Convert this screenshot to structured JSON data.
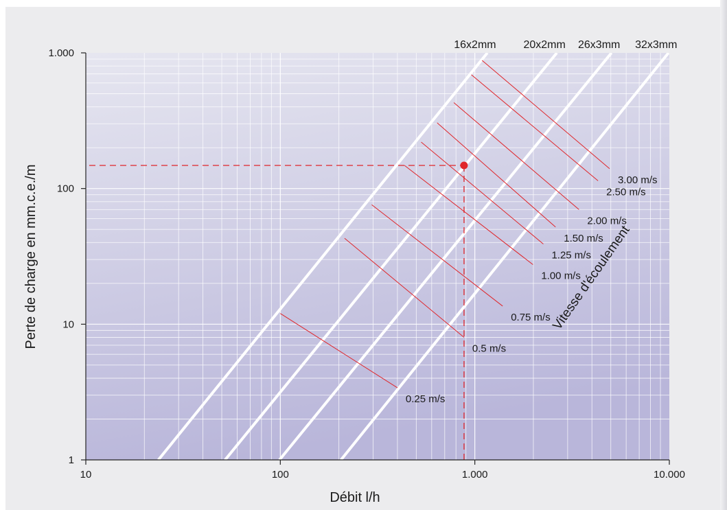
{
  "chart_data": {
    "type": "line",
    "title": "",
    "xlabel": "Débit l/h",
    "ylabel": "Perte de charge en mm.c.e./m",
    "xscale": "log",
    "yscale": "log",
    "xlim": [
      10,
      10000
    ],
    "ylim": [
      1,
      1000
    ],
    "grid": true,
    "x_ticks": [
      {
        "value": 10,
        "label": "10"
      },
      {
        "value": 100,
        "label": "100"
      },
      {
        "value": 1000,
        "label": "1.000"
      },
      {
        "value": 10000,
        "label": "10.000"
      }
    ],
    "y_ticks": [
      {
        "value": 1,
        "label": "1"
      },
      {
        "value": 10,
        "label": "10"
      },
      {
        "value": 100,
        "label": "100"
      },
      {
        "value": 1000,
        "label": "1.000"
      }
    ],
    "series": [
      {
        "name": "16x2mm",
        "points": [
          [
            23.6,
            1
          ],
          [
            1160,
            1000
          ]
        ]
      },
      {
        "name": "20x2mm",
        "points": [
          [
            52,
            1
          ],
          [
            2640,
            1000
          ]
        ]
      },
      {
        "name": "26x3mm",
        "points": [
          [
            99,
            1
          ],
          [
            5040,
            1000
          ]
        ]
      },
      {
        "name": "32x3mm",
        "points": [
          [
            205,
            1
          ],
          [
            9900,
            1000
          ]
        ]
      }
    ],
    "velocity_lines": [
      {
        "label": "3.00 m/s",
        "points": [
          [
            1090,
            880
          ],
          [
            4930,
            140
          ]
        ]
      },
      {
        "label": "2.50 m/s",
        "points": [
          [
            960,
            690
          ],
          [
            4300,
            114
          ]
        ]
      },
      {
        "label": "2.00 m/s",
        "points": [
          [
            780,
            430
          ],
          [
            3430,
            70
          ]
        ]
      },
      {
        "label": "1.50 m/s",
        "points": [
          [
            640,
            305
          ],
          [
            2600,
            52
          ]
        ]
      },
      {
        "label": "1.25 m/s",
        "points": [
          [
            530,
            220
          ],
          [
            2250,
            39
          ]
        ]
      },
      {
        "label": "1.00 m/s",
        "points": [
          [
            435,
            148
          ],
          [
            1990,
            27.5
          ]
        ]
      },
      {
        "label": "0.75 m/s",
        "points": [
          [
            295,
            76
          ],
          [
            1390,
            13.6
          ]
        ]
      },
      {
        "label": "0.5 m/s",
        "points": [
          [
            214,
            43
          ],
          [
            880,
            8.0
          ]
        ]
      },
      {
        "label": "0.25 m/s",
        "points": [
          [
            100,
            12
          ],
          [
            400,
            3.4
          ]
        ]
      }
    ],
    "marker_point": {
      "x": 880,
      "y": 148
    },
    "annotation": "Vitesse d'écoulement",
    "colors": {
      "background_top": "#e6e6f0",
      "background_bottom": "#b9b6da",
      "pipe_lines": "#ffffff",
      "velocity_lines": "#e0262a",
      "marker": "#e0262a",
      "frame": "#ececee"
    }
  }
}
